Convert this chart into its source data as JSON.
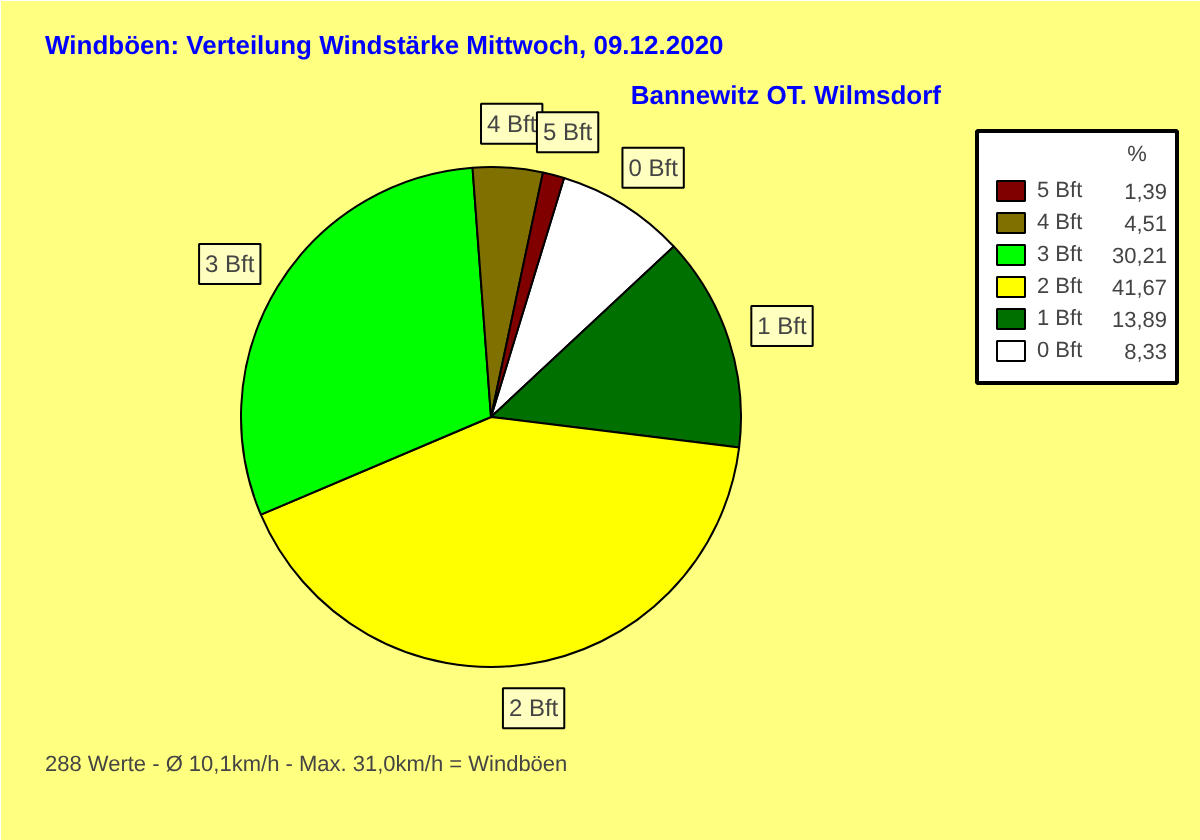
{
  "chart_data": {
    "type": "pie",
    "title": "Windböen: Verteilung Windstärke  Mittwoch, 09.12.2020",
    "subtitle": "Bannewitz OT. Wilmsdorf",
    "legend_title": "%",
    "legend": "top right",
    "categories": [
      "5 Bft",
      "4 Bft",
      "3 Bft",
      "2 Bft",
      "1 Bft",
      "0 Bft"
    ],
    "values": [
      1.39,
      4.51,
      30.21,
      41.67,
      13.89,
      8.33
    ],
    "value_labels": [
      "1,39",
      "4,51",
      "30,21",
      "41,67",
      "13,89",
      "8,33"
    ],
    "colors": [
      "#800000",
      "#807000",
      "#00ff00",
      "#ffff00",
      "#007000",
      "#ffffff"
    ],
    "annotations": [
      "288 Werte   -   Ø 10,1km/h  -  Max. 31,0km/h = Windböen"
    ]
  }
}
